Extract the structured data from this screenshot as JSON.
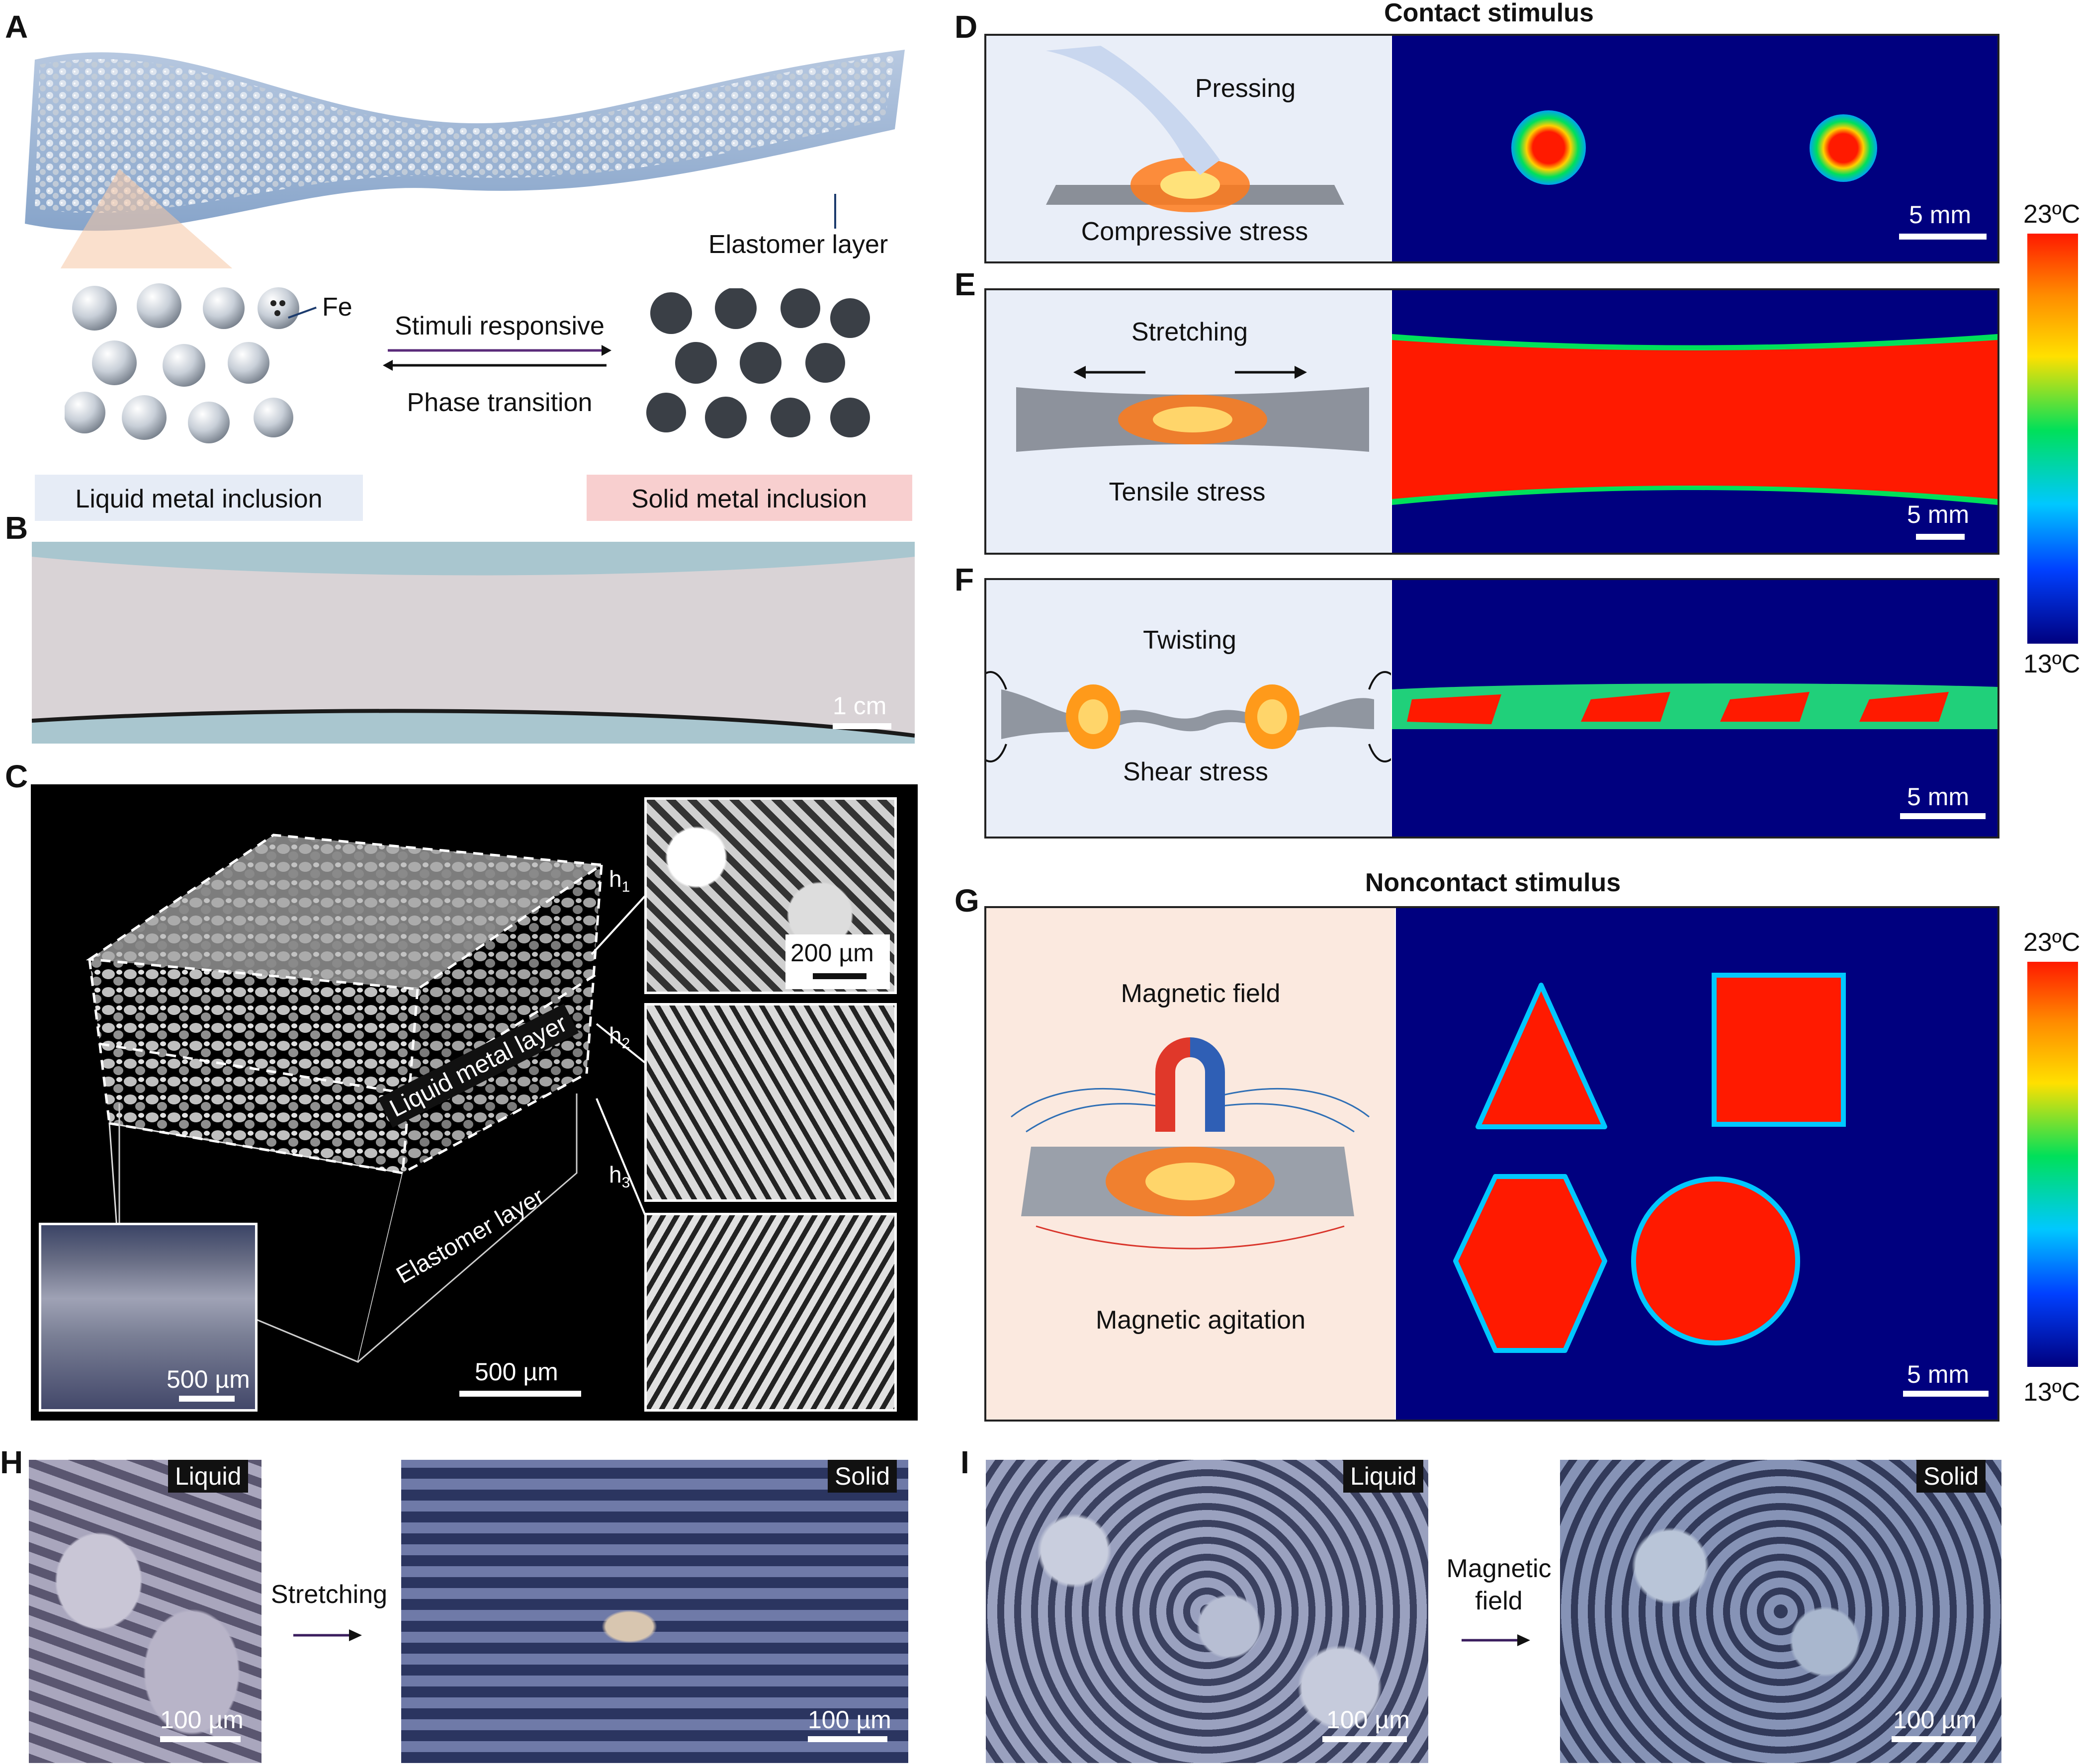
{
  "panels": {
    "A": {
      "label": "A",
      "elastomer_layer": "Elastomer layer",
      "fe": "Fe",
      "stimuli_responsive": "Stimuli responsive",
      "phase_transition": "Phase transition",
      "liquid_inclusion": "Liquid metal inclusion",
      "solid_inclusion": "Solid metal inclusion"
    },
    "B": {
      "label": "B",
      "scale": "1 cm"
    },
    "C": {
      "label": "C",
      "h1": "h",
      "h1_sub": "1",
      "h2": "h",
      "h2_sub": "2",
      "h3": "h",
      "h3_sub": "3",
      "scale_inset": "500 µm",
      "scale_main": "500 µm",
      "scale_slice": "200 µm",
      "liquid_metal_layer": "Liquid metal layer",
      "elastomer_layer": "Elastomer layer"
    },
    "contact_title": "Contact stimulus",
    "D": {
      "label": "D",
      "top": "Pressing",
      "bottom": "Compressive stress",
      "scale": "5 mm"
    },
    "E": {
      "label": "E",
      "top": "Stretching",
      "bottom": "Tensile stress",
      "scale": "5 mm"
    },
    "F": {
      "label": "F",
      "top": "Twisting",
      "bottom": "Shear stress",
      "scale": "5 mm"
    },
    "colorbar_top": {
      "max": "23ºC",
      "min": "13ºC"
    },
    "noncontact_title": "Noncontact stimulus",
    "G": {
      "label": "G",
      "top": "Magnetic field",
      "bottom": "Magnetic agitation",
      "scale": "5 mm",
      "max": "23ºC",
      "min": "13ºC"
    },
    "H": {
      "label": "H",
      "tag_left": "Liquid",
      "tag_right": "Solid",
      "arrow": "Stretching",
      "scale_left": "100 µm",
      "scale_right": "100 µm"
    },
    "I": {
      "label": "I",
      "tag_left": "Liquid",
      "tag_right": "Solid",
      "arrow_line1": "Magnetic",
      "arrow_line2": "field",
      "scale_left": "100 µm",
      "scale_right": "100 µm"
    }
  },
  "colors": {
    "heat_bg": "#00007f",
    "heat_hot": "#ff1a00",
    "panel_blue_bg": "#e9eef8",
    "panel_peach_bg": "#fbe9df",
    "liquid_box": "#e6ecf6",
    "solid_box": "#f8cfcf"
  }
}
